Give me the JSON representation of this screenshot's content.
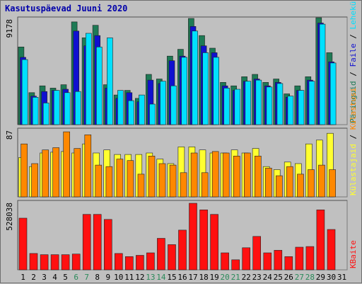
{
  "chart_data": {
    "title": "Kasutuspäevad Juuni 2020",
    "type": "bar",
    "days": [
      "1",
      "2",
      "3",
      "4",
      "5",
      "6",
      "7",
      "8",
      "9",
      "10",
      "11",
      "12",
      "13",
      "14",
      "15",
      "16",
      "17",
      "18",
      "19",
      "20",
      "21",
      "22",
      "23",
      "24",
      "25",
      "26",
      "27",
      "28",
      "29",
      "30",
      "31"
    ],
    "weekend_days": [
      "6",
      "7",
      "13",
      "14",
      "20",
      "21",
      "27",
      "28"
    ],
    "colors": {
      "weekday_label": "#000000",
      "weekend_label": "#2a8a5a",
      "pageviews": "#1e7a55",
      "files": "#1010d0",
      "pages": "#00e0ff",
      "hits": "#ffff30",
      "visits": "#ff8800",
      "kbytes": "#ff1010"
    },
    "panels": [
      {
        "id": "top",
        "tick": "9178",
        "ylim": [
          0,
          9178
        ],
        "legend": [
          "Päringuid",
          "Faile",
          "Lehekülgi"
        ],
        "series": [
          {
            "name": "Päringuid",
            "color": "#1e7a55",
            "values": [
              6800,
              2800,
              3400,
              3200,
              3500,
              9000,
              7600,
              8700,
              3500,
              2600,
              3000,
              2300,
              4400,
              4000,
              6000,
              6600,
              9300,
              7800,
              6700,
              3700,
              3400,
              4200,
              4400,
              3700,
              4000,
              2700,
              3400,
              4200,
              9600,
              6300,
              0
            ]
          },
          {
            "name": "Faile",
            "color": "#1010d0",
            "values": [
              5900,
              2500,
              2900,
              3000,
              3100,
              8200,
              6900,
              7800,
              3200,
              2300,
              2800,
              2000,
              3900,
              3600,
              5600,
              6000,
              8600,
              6900,
              6300,
              3400,
              3000,
              3800,
              4000,
              3400,
              3700,
              2400,
              3000,
              3900,
              8900,
              5500,
              0
            ]
          },
          {
            "name": "Lehekülgi",
            "color": "#00e0ff",
            "values": [
              5700,
              2400,
              1900,
              3000,
              2800,
              2900,
              8000,
              6800,
              7600,
              3000,
              2100,
              2600,
              1800,
              3800,
              3400,
              5900,
              8200,
              6300,
              5900,
              3200,
              3100,
              3800,
              3900,
              3300,
              3600,
              2500,
              3000,
              3800,
              8800,
              5400,
              0
            ]
          }
        ]
      },
      {
        "id": "middle",
        "tick": "87",
        "ylim": [
          0,
          87
        ],
        "legend": [
          "Külastajaid",
          "Külastusi"
        ],
        "series": [
          {
            "name": "Külastajaid",
            "color": "#ffff30",
            "values": [
              52,
              40,
              58,
              59,
              60,
              58,
              70,
              58,
              62,
              56,
              56,
              56,
              58,
              50,
              44,
              66,
              66,
              62,
              58,
              58,
              62,
              58,
              64,
              40,
              36,
              46,
              44,
              70,
              75,
              84,
              0
            ]
          },
          {
            "name": "Külastusi",
            "color": "#ff8800",
            "values": [
              70,
              44,
              62,
              65,
              86,
              64,
              82,
              42,
              40,
              50,
              48,
              30,
              54,
              44,
              42,
              32,
              58,
              32,
              60,
              58,
              54,
              58,
              54,
              38,
              28,
              40,
              30,
              36,
              42,
              36,
              0
            ]
          }
        ]
      },
      {
        "id": "bottom",
        "tick": "528038",
        "ylim": [
          0,
          528038
        ],
        "legend": [
          "KBaite"
        ],
        "series": [
          {
            "name": "KBaite",
            "color": "#ff1010",
            "values": [
              410000,
              130000,
              120000,
              120000,
              120000,
              125000,
              440000,
              440000,
              400000,
              130000,
              105000,
              115000,
              135000,
              250000,
              200000,
              315000,
              528038,
              476000,
              440000,
              135000,
              80000,
              175000,
              265000,
              135000,
              155000,
              105000,
              180000,
              185000,
              476000,
              320000,
              0
            ]
          }
        ]
      }
    ]
  }
}
